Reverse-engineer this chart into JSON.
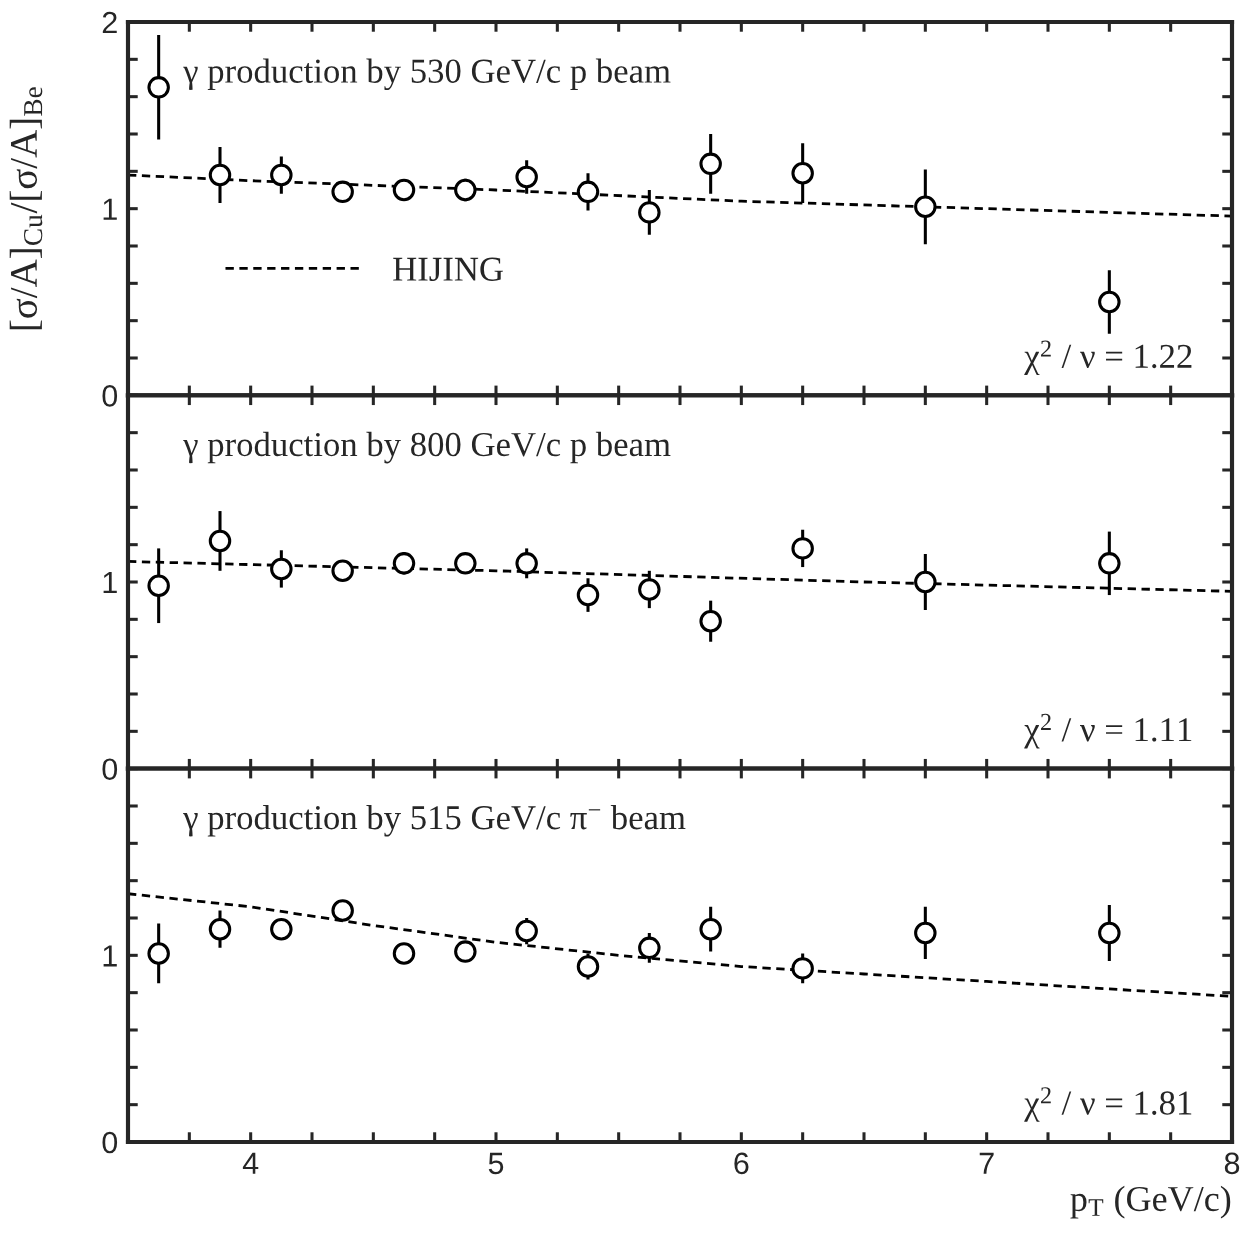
{
  "chart_data": [
    {
      "type": "scatter",
      "title": "γ production by 530 GeV/c p beam",
      "ylabel": "[σ/A]$_{Cu}$/[σ/A]$_{Be}$",
      "xlim": [
        3.5,
        8
      ],
      "ylim": [
        0,
        2
      ],
      "xticks": [
        {
          "value": 3.75,
          "label": null
        },
        {
          "value": 4,
          "label": null
        },
        {
          "value": 4.25,
          "label": null
        },
        {
          "value": 4.5,
          "label": null
        },
        {
          "value": 4.75,
          "label": null
        },
        {
          "value": 5,
          "label": null
        },
        {
          "value": 5.25,
          "label": null
        },
        {
          "value": 5.5,
          "label": null
        },
        {
          "value": 5.75,
          "label": null
        },
        {
          "value": 6,
          "label": null
        },
        {
          "value": 6.25,
          "label": null
        },
        {
          "value": 6.5,
          "label": null
        },
        {
          "value": 6.75,
          "label": null
        },
        {
          "value": 7,
          "label": null
        },
        {
          "value": 7.25,
          "label": null
        },
        {
          "value": 7.5,
          "label": null
        },
        {
          "value": 7.75,
          "label": null
        },
        {
          "value": 8,
          "label": null
        }
      ],
      "yticks": [
        0,
        {
          "value": 0.2,
          "label": null
        },
        {
          "value": 0.4,
          "label": null
        },
        {
          "value": 0.6,
          "label": null
        },
        {
          "value": 0.8,
          "label": null
        },
        1,
        {
          "value": 1.2,
          "label": null
        },
        {
          "value": 1.4,
          "label": null
        },
        {
          "value": 1.6,
          "label": null
        },
        {
          "value": 1.8,
          "label": null
        },
        2
      ],
      "tick_labels": "y",
      "legend": "left",
      "grid": false,
      "annotations": [
        "χ$^{2}$ / ν = 1.22"
      ],
      "series": [
        {
          "marker": "circle",
          "color": "#000000",
          "x": [
            3.625,
            3.875,
            4.125,
            4.375,
            4.625,
            4.875,
            5.125,
            5.375,
            5.625,
            5.875,
            6.25,
            6.75,
            7.5
          ],
          "values": [
            1.65,
            1.18,
            1.18,
            1.09,
            1.1,
            1.1,
            1.17,
            1.09,
            0.98,
            1.24,
            1.19,
            1.01,
            0.5
          ],
          "errors": [
            0.28,
            0.15,
            0.1,
            0.03,
            0.04,
            0.06,
            0.09,
            0.1,
            0.12,
            0.16,
            0.16,
            0.2,
            0.17
          ]
        },
        {
          "type": "line",
          "name": "HIJING",
          "color": "#000000",
          "line_style": "dashed",
          "x": [
            3.5,
            4,
            5,
            6,
            6.75,
            8
          ],
          "values": [
            1.18,
            1.15,
            1.1,
            1.04,
            1.01,
            0.96
          ]
        }
      ]
    },
    {
      "type": "scatter",
      "title": "γ production by 800 GeV/c p beam",
      "xlim": [
        3.5,
        8
      ],
      "ylim": [
        0,
        2
      ],
      "xticks": [
        {
          "value": 3.75,
          "label": null
        },
        {
          "value": 4,
          "label": null
        },
        {
          "value": 4.25,
          "label": null
        },
        {
          "value": 4.5,
          "label": null
        },
        {
          "value": 4.75,
          "label": null
        },
        {
          "value": 5,
          "label": null
        },
        {
          "value": 5.25,
          "label": null
        },
        {
          "value": 5.5,
          "label": null
        },
        {
          "value": 5.75,
          "label": null
        },
        {
          "value": 6,
          "label": null
        },
        {
          "value": 6.25,
          "label": null
        },
        {
          "value": 6.5,
          "label": null
        },
        {
          "value": 6.75,
          "label": null
        },
        {
          "value": 7,
          "label": null
        },
        {
          "value": 7.25,
          "label": null
        },
        {
          "value": 7.5,
          "label": null
        },
        {
          "value": 7.75,
          "label": null
        },
        {
          "value": 8,
          "label": null
        }
      ],
      "yticks": [
        0,
        {
          "value": 0.2,
          "label": null
        },
        {
          "value": 0.4,
          "label": null
        },
        {
          "value": 0.6,
          "label": null
        },
        {
          "value": 0.8,
          "label": null
        },
        1,
        {
          "value": 1.2,
          "label": null
        },
        {
          "value": 1.4,
          "label": null
        },
        {
          "value": 1.6,
          "label": null
        },
        {
          "value": 1.8,
          "label": null
        },
        {
          "value": 2,
          "label": null
        }
      ],
      "tick_labels": "y",
      "grid": false,
      "annotations": [
        "χ$^{2}$ / ν = 1.11"
      ],
      "series": [
        {
          "marker": "circle",
          "color": "#000000",
          "x": [
            3.625,
            3.875,
            4.125,
            4.375,
            4.625,
            4.875,
            5.125,
            5.375,
            5.625,
            5.875,
            6.25,
            6.75,
            7.5
          ],
          "values": [
            0.98,
            1.22,
            1.07,
            1.06,
            1.1,
            1.1,
            1.1,
            0.93,
            0.96,
            0.79,
            1.18,
            1.0,
            1.1
          ],
          "errors": [
            0.2,
            0.16,
            0.1,
            0.04,
            0.06,
            0.05,
            0.08,
            0.09,
            0.1,
            0.11,
            0.1,
            0.15,
            0.17
          ]
        },
        {
          "type": "line",
          "color": "#000000",
          "line_style": "dashed",
          "x": [
            3.5,
            5,
            6.5,
            8
          ],
          "values": [
            1.11,
            1.06,
            1.0,
            0.95
          ]
        }
      ]
    },
    {
      "type": "scatter",
      "title": "γ production by 515 GeV/c π$^{−}$ beam",
      "xlabel": "p$_{T}$ (GeV/c)",
      "xlim": [
        3.5,
        8
      ],
      "ylim": [
        0,
        2
      ],
      "xticks": [
        {
          "value": 3.75,
          "label": null
        },
        4,
        {
          "value": 4.25,
          "label": null
        },
        {
          "value": 4.5,
          "label": null
        },
        {
          "value": 4.75,
          "label": null
        },
        5,
        {
          "value": 5.25,
          "label": null
        },
        {
          "value": 5.5,
          "label": null
        },
        {
          "value": 5.75,
          "label": null
        },
        6,
        {
          "value": 6.25,
          "label": null
        },
        {
          "value": 6.5,
          "label": null
        },
        {
          "value": 6.75,
          "label": null
        },
        7,
        {
          "value": 7.25,
          "label": null
        },
        {
          "value": 7.5,
          "label": null
        },
        {
          "value": 7.75,
          "label": null
        },
        8
      ],
      "yticks": [
        0,
        {
          "value": 0.2,
          "label": null
        },
        {
          "value": 0.4,
          "label": null
        },
        {
          "value": 0.6,
          "label": null
        },
        {
          "value": 0.8,
          "label": null
        },
        1,
        {
          "value": 1.2,
          "label": null
        },
        {
          "value": 1.4,
          "label": null
        },
        {
          "value": 1.6,
          "label": null
        },
        {
          "value": 1.8,
          "label": null
        },
        {
          "value": 2,
          "label": null
        }
      ],
      "grid": false,
      "annotations": [
        "χ$^{2}$ / ν = 1.81"
      ],
      "series": [
        {
          "marker": "circle",
          "color": "#000000",
          "x": [
            3.625,
            3.875,
            4.125,
            4.375,
            4.625,
            4.875,
            5.125,
            5.375,
            5.625,
            5.875,
            6.25,
            6.75,
            7.5
          ],
          "values": [
            1.01,
            1.14,
            1.14,
            1.24,
            1.01,
            1.02,
            1.13,
            0.94,
            1.04,
            1.14,
            0.93,
            1.12,
            1.12
          ],
          "errors": [
            0.16,
            0.1,
            0.03,
            0.03,
            0.03,
            0.04,
            0.07,
            0.07,
            0.08,
            0.12,
            0.08,
            0.14,
            0.15
          ]
        },
        {
          "type": "line",
          "color": "#000000",
          "line_style": "dashed",
          "x": [
            3.5,
            4,
            4.5,
            5,
            5.5,
            6,
            6.5,
            7,
            7.5,
            8
          ],
          "values": [
            1.33,
            1.26,
            1.16,
            1.07,
            1.0,
            0.94,
            0.9,
            0.86,
            0.82,
            0.78
          ]
        }
      ]
    }
  ]
}
